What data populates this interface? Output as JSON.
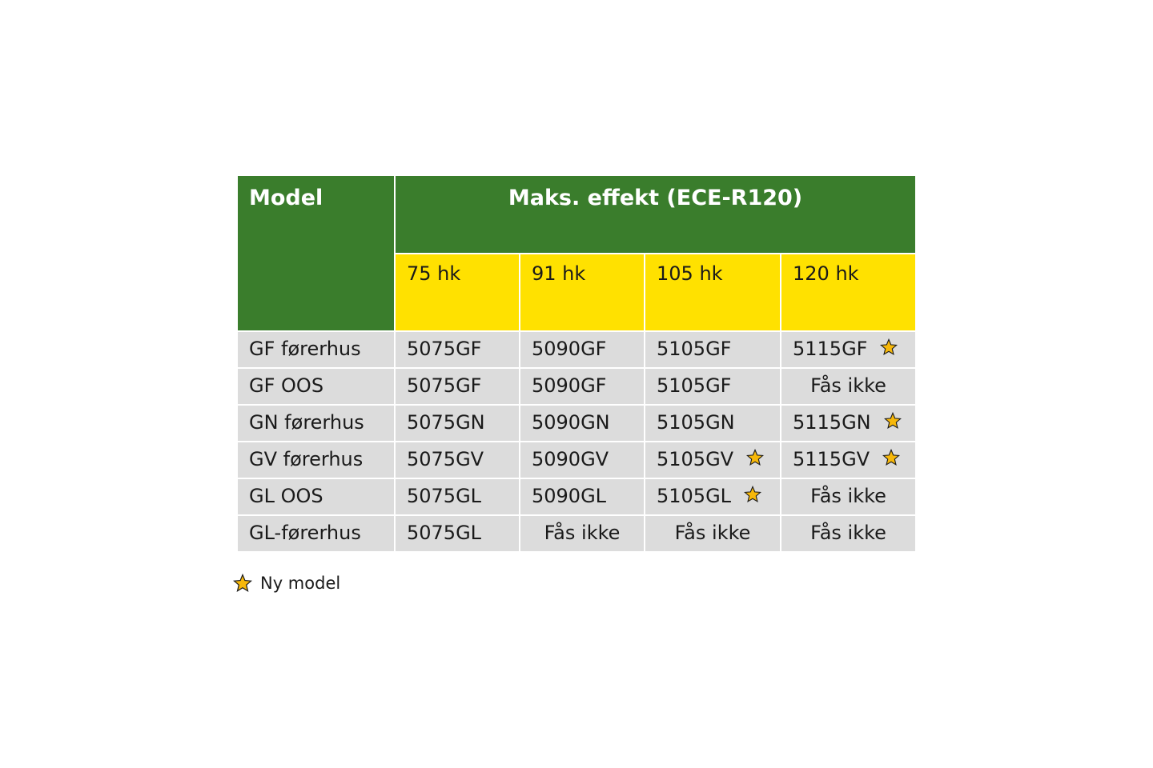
{
  "header": {
    "model_label": "Model",
    "effekt_label": "Maks. effekt (ECE-R120)",
    "power_columns": [
      "75 hk",
      "91 hk",
      "105 hk",
      "120 hk"
    ]
  },
  "rows": [
    {
      "name": "GF førerhus",
      "cells": [
        {
          "text": "5075GF",
          "new": false
        },
        {
          "text": "5090GF",
          "new": false
        },
        {
          "text": "5105GF",
          "new": false
        },
        {
          "text": "5115GF",
          "new": true
        }
      ]
    },
    {
      "name": "GF OOS",
      "cells": [
        {
          "text": "5075GF",
          "new": false
        },
        {
          "text": "5090GF",
          "new": false
        },
        {
          "text": "5105GF",
          "new": false
        },
        {
          "text": "Fås ikke",
          "new": false,
          "na": true
        }
      ]
    },
    {
      "name": "GN førerhus",
      "cells": [
        {
          "text": "5075GN",
          "new": false
        },
        {
          "text": "5090GN",
          "new": false
        },
        {
          "text": "5105GN",
          "new": false
        },
        {
          "text": "5115GN",
          "new": true
        }
      ]
    },
    {
      "name": "GV førerhus",
      "cells": [
        {
          "text": "5075GV",
          "new": false
        },
        {
          "text": "5090GV",
          "new": false
        },
        {
          "text": "5105GV",
          "new": true
        },
        {
          "text": "5115GV",
          "new": true
        }
      ]
    },
    {
      "name": "GL OOS",
      "cells": [
        {
          "text": "5075GL",
          "new": false
        },
        {
          "text": "5090GL",
          "new": false
        },
        {
          "text": "5105GL",
          "new": true
        },
        {
          "text": "Fås ikke",
          "new": false,
          "na": true
        }
      ]
    },
    {
      "name": "GL-førerhus",
      "cells": [
        {
          "text": "5075GL",
          "new": false
        },
        {
          "text": "Fås ikke",
          "new": false,
          "na": true
        },
        {
          "text": "Fås ikke",
          "new": false,
          "na": true
        },
        {
          "text": "Fås ikke",
          "new": false,
          "na": true
        }
      ]
    }
  ],
  "legend": {
    "icon": "star-icon",
    "label": "Ny model"
  },
  "colors": {
    "header_green": "#3a7d2c",
    "header_yellow": "#ffe100",
    "cell_grey": "#dcdcdc",
    "star_fill": "#f7b80a"
  }
}
